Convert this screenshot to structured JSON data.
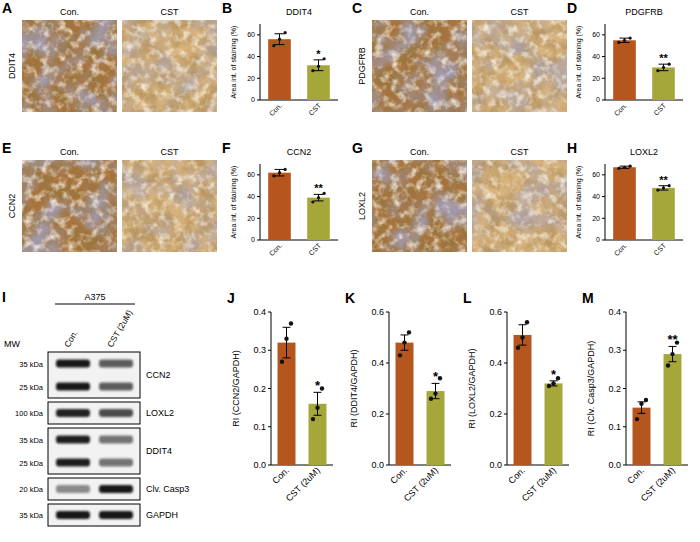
{
  "chart_data": [
    {
      "type": "bar",
      "panel": "B",
      "title": "DDIT4",
      "ylabel": "Area int. of staining (%)",
      "categories": [
        "Con.",
        "CST"
      ],
      "values": [
        56,
        32
      ],
      "errors": [
        5,
        5
      ],
      "points": [
        [
          50,
          56,
          62
        ],
        [
          27,
          31,
          38
        ]
      ],
      "colors": [
        "#b4561e",
        "#a6a73a"
      ],
      "significance": "*",
      "ylim": [
        0,
        70
      ],
      "yticks": [
        0,
        20,
        40,
        60
      ]
    },
    {
      "type": "bar",
      "panel": "D",
      "title": "PDGFRB",
      "ylabel": "Area int. of staining (%)",
      "categories": [
        "Con.",
        "CST"
      ],
      "values": [
        55,
        30
      ],
      "errors": [
        2,
        3
      ],
      "points": [
        [
          53,
          55,
          57
        ],
        [
          27,
          30,
          33
        ]
      ],
      "colors": [
        "#b4561e",
        "#a6a73a"
      ],
      "significance": "**",
      "ylim": [
        0,
        70
      ],
      "yticks": [
        0,
        20,
        40,
        60
      ]
    },
    {
      "type": "bar",
      "panel": "F",
      "title": "CCN2",
      "ylabel": "Area int. of staining (%)",
      "categories": [
        "Con.",
        "CST"
      ],
      "values": [
        62,
        39
      ],
      "errors": [
        3,
        3
      ],
      "points": [
        [
          59,
          62,
          65
        ],
        [
          35,
          39,
          43
        ]
      ],
      "colors": [
        "#b4561e",
        "#a6a73a"
      ],
      "significance": "**",
      "ylim": [
        0,
        70
      ],
      "yticks": [
        0,
        20,
        40,
        60
      ]
    },
    {
      "type": "bar",
      "panel": "H",
      "title": "LOXL2",
      "ylabel": "Area int. of staining (%)",
      "categories": [
        "Con.",
        "CST"
      ],
      "values": [
        67,
        48
      ],
      "errors": [
        1,
        2
      ],
      "points": [
        [
          66,
          67,
          68
        ],
        [
          46,
          48,
          50
        ]
      ],
      "colors": [
        "#b4561e",
        "#a6a73a"
      ],
      "significance": "**",
      "ylim": [
        0,
        70
      ],
      "yticks": [
        0,
        20,
        40,
        60
      ]
    },
    {
      "type": "bar",
      "panel": "J",
      "ylabel": "RI (CCN2/GAPDH)",
      "categories": [
        "Con.",
        "CST (2uM)"
      ],
      "values": [
        0.32,
        0.16
      ],
      "errors": [
        0.04,
        0.03
      ],
      "points": [
        [
          0.27,
          0.33,
          0.37
        ],
        [
          0.12,
          0.15,
          0.2
        ]
      ],
      "colors": [
        "#b4561e",
        "#a6a73a"
      ],
      "significance": "*",
      "ylim": [
        0,
        0.4
      ],
      "yticks": [
        {
          "value": 0,
          "label": "0.0"
        },
        {
          "value": 0.1,
          "label": "0.1"
        },
        {
          "value": 0.2,
          "label": "0.2"
        },
        {
          "value": 0.3,
          "label": "0.3"
        },
        {
          "value": 0.4,
          "label": "0.4"
        }
      ]
    },
    {
      "type": "bar",
      "panel": "K",
      "ylabel": "RI (DDIT4/GAPDH)",
      "categories": [
        "Con.",
        "CST (2uM)"
      ],
      "values": [
        0.48,
        0.29
      ],
      "errors": [
        0.03,
        0.03
      ],
      "points": [
        [
          0.43,
          0.48,
          0.52
        ],
        [
          0.26,
          0.28,
          0.34
        ]
      ],
      "colors": [
        "#b4561e",
        "#a6a73a"
      ],
      "significance": "*",
      "ylim": [
        0,
        0.6
      ],
      "yticks": [
        {
          "value": 0,
          "label": "0.0"
        },
        {
          "value": 0.2,
          "label": "0.2"
        },
        {
          "value": 0.4,
          "label": "0.4"
        },
        {
          "value": 0.6,
          "label": "0.6"
        }
      ]
    },
    {
      "type": "bar",
      "panel": "L",
      "ylabel": "RI (LOXL2/GAPDH)",
      "categories": [
        "Con.",
        "CST (2uM)"
      ],
      "values": [
        0.51,
        0.32
      ],
      "errors": [
        0.04,
        0.01
      ],
      "points": [
        [
          0.46,
          0.5,
          0.56
        ],
        [
          0.31,
          0.32,
          0.34
        ]
      ],
      "colors": [
        "#b4561e",
        "#a6a73a"
      ],
      "significance": "*",
      "ylim": [
        0,
        0.6
      ],
      "yticks": [
        {
          "value": 0,
          "label": "0.0"
        },
        {
          "value": 0.2,
          "label": "0.2"
        },
        {
          "value": 0.4,
          "label": "0.4"
        },
        {
          "value": 0.6,
          "label": "0.6"
        }
      ]
    },
    {
      "type": "bar",
      "panel": "M",
      "ylabel": "RI (Clv. Casp3/GAPDH)",
      "categories": [
        "Con.",
        "CST (2uM)"
      ],
      "values": [
        0.15,
        0.29
      ],
      "errors": [
        0.015,
        0.02
      ],
      "points": [
        [
          0.12,
          0.16,
          0.17
        ],
        [
          0.26,
          0.29,
          0.32
        ]
      ],
      "colors": [
        "#b4561e",
        "#a6a73a"
      ],
      "significance": "**",
      "ylim": [
        0,
        0.4
      ],
      "yticks": [
        {
          "value": 0,
          "label": "0.0"
        },
        {
          "value": 0.1,
          "label": "0.1"
        },
        {
          "value": 0.2,
          "label": "0.2"
        },
        {
          "value": 0.3,
          "label": "0.3"
        },
        {
          "value": 0.4,
          "label": "0.4"
        }
      ]
    }
  ],
  "ihc_panels": [
    {
      "panel": "A",
      "marker": "DDIT4",
      "labels": [
        "Con.",
        "CST"
      ]
    },
    {
      "panel": "C",
      "marker": "PDGFRB",
      "labels": [
        "Con.",
        "CST"
      ]
    },
    {
      "panel": "E",
      "marker": "CCN2",
      "labels": [
        "Con.",
        "CST"
      ]
    },
    {
      "panel": "G",
      "marker": "LOXL2",
      "labels": [
        "Con.",
        "CST"
      ]
    }
  ],
  "blot": {
    "panel": "I",
    "cell_line": "A375",
    "mw_label": "MW",
    "conditions": [
      "Con.",
      "CST (2uM)"
    ],
    "rows": [
      {
        "name": "CCN2",
        "mw": [
          "35 kDa",
          "25 kDa"
        ]
      },
      {
        "name": "LOXL2",
        "mw": [
          "100 kDa"
        ]
      },
      {
        "name": "DDIT4",
        "mw": [
          "35 kDa",
          "25 kDa"
        ]
      },
      {
        "name": "Clv. Casp3",
        "mw": [
          "20 kDa"
        ]
      },
      {
        "name": "GAPDH",
        "mw": [
          "35 kDa"
        ]
      }
    ]
  }
}
